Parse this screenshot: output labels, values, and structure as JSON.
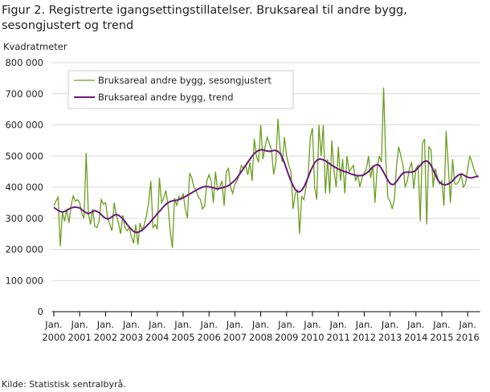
{
  "chart_data": {
    "type": "line",
    "title": "Figur 2. Registrerte igangsettingstillatelser. Bruksareal til andre bygg, sesongjustert og trend",
    "y_label": "Kvadratmeter",
    "source": "Kilde:  Statistisk sentralbyrå.",
    "x": [
      "2000-01",
      "2000-02",
      "2000-03",
      "2000-04",
      "2000-05",
      "2000-06",
      "2000-07",
      "2000-08",
      "2000-09",
      "2000-10",
      "2000-11",
      "2000-12",
      "2001-01",
      "2001-02",
      "2001-03",
      "2001-04",
      "2001-05",
      "2001-06",
      "2001-07",
      "2001-08",
      "2001-09",
      "2001-10",
      "2001-11",
      "2001-12",
      "2002-01",
      "2002-02",
      "2002-03",
      "2002-04",
      "2002-05",
      "2002-06",
      "2002-07",
      "2002-08",
      "2002-09",
      "2002-10",
      "2002-11",
      "2002-12",
      "2003-01",
      "2003-02",
      "2003-03",
      "2003-04",
      "2003-05",
      "2003-06",
      "2003-07",
      "2003-08",
      "2003-09",
      "2003-10",
      "2003-11",
      "2003-12",
      "2004-01",
      "2004-02",
      "2004-03",
      "2004-04",
      "2004-05",
      "2004-06",
      "2004-07",
      "2004-08",
      "2004-09",
      "2004-10",
      "2004-11",
      "2004-12",
      "2005-01",
      "2005-02",
      "2005-03",
      "2005-04",
      "2005-05",
      "2005-06",
      "2005-07",
      "2005-08",
      "2005-09",
      "2005-10",
      "2005-11",
      "2005-12",
      "2006-01",
      "2006-02",
      "2006-03",
      "2006-04",
      "2006-05",
      "2006-06",
      "2006-07",
      "2006-08",
      "2006-09",
      "2006-10",
      "2006-11",
      "2006-12",
      "2007-01",
      "2007-02",
      "2007-03",
      "2007-04",
      "2007-05",
      "2007-06",
      "2007-07",
      "2007-08",
      "2007-09",
      "2007-10",
      "2007-11",
      "2007-12",
      "2008-01",
      "2008-02",
      "2008-03",
      "2008-04",
      "2008-05",
      "2008-06",
      "2008-07",
      "2008-08",
      "2008-09",
      "2008-10",
      "2008-11",
      "2008-12",
      "2009-01",
      "2009-02",
      "2009-03",
      "2009-04",
      "2009-05",
      "2009-06",
      "2009-07",
      "2009-08",
      "2009-09",
      "2009-10",
      "2009-11",
      "2009-12",
      "2010-01",
      "2010-02",
      "2010-03",
      "2010-04",
      "2010-05",
      "2010-06",
      "2010-07",
      "2010-08",
      "2010-09",
      "2010-10",
      "2010-11",
      "2010-12",
      "2011-01",
      "2011-02",
      "2011-03",
      "2011-04",
      "2011-05",
      "2011-06",
      "2011-07",
      "2011-08",
      "2011-09",
      "2011-10",
      "2011-11",
      "2011-12",
      "2012-01",
      "2012-02",
      "2012-03",
      "2012-04",
      "2012-05",
      "2012-06",
      "2012-07",
      "2012-08",
      "2012-09",
      "2012-10",
      "2012-11",
      "2012-12",
      "2013-01",
      "2013-02",
      "2013-03",
      "2013-04",
      "2013-05",
      "2013-06",
      "2013-07",
      "2013-08",
      "2013-09",
      "2013-10",
      "2013-11",
      "2013-12",
      "2014-01",
      "2014-02",
      "2014-03",
      "2014-04",
      "2014-05",
      "2014-06",
      "2014-07",
      "2014-08",
      "2014-09",
      "2014-10",
      "2014-11",
      "2014-12",
      "2015-01",
      "2015-02",
      "2015-03",
      "2015-04",
      "2015-05",
      "2015-06",
      "2015-07",
      "2015-08",
      "2015-09",
      "2015-10",
      "2015-11",
      "2015-12",
      "2016-01",
      "2016-02",
      "2016-03",
      "2016-04",
      "2016-05",
      "2016-06"
    ],
    "series": [
      {
        "name": "Bruksareal andre bygg, sesongjustert",
        "color": "#6a9e1f",
        "width": 1.3,
        "values": [
          340000,
          355000,
          368000,
          210000,
          320000,
          290000,
          330000,
          285000,
          340000,
          372000,
          355000,
          360000,
          350000,
          315000,
          300000,
          510000,
          320000,
          280000,
          330000,
          275000,
          270000,
          290000,
          360000,
          345000,
          350000,
          300000,
          280000,
          260000,
          350000,
          310000,
          285000,
          250000,
          310000,
          270000,
          260000,
          270000,
          240000,
          220000,
          280000,
          215000,
          285000,
          260000,
          280000,
          310000,
          350000,
          420000,
          270000,
          280000,
          265000,
          430000,
          350000,
          365000,
          390000,
          340000,
          260000,
          205000,
          365000,
          340000,
          370000,
          360000,
          380000,
          330000,
          300000,
          445000,
          430000,
          400000,
          390000,
          370000,
          360000,
          330000,
          340000,
          420000,
          440000,
          420000,
          350000,
          450000,
          390000,
          400000,
          420000,
          340000,
          450000,
          460000,
          400000,
          380000,
          410000,
          420000,
          440000,
          470000,
          460000,
          470000,
          440000,
          480000,
          420000,
          555000,
          500000,
          480000,
          600000,
          490000,
          530000,
          560000,
          540000,
          520000,
          440000,
          480000,
          620000,
          520000,
          480000,
          560000,
          500000,
          470000,
          450000,
          330000,
          380000,
          390000,
          250000,
          370000,
          360000,
          400000,
          440000,
          560000,
          590000,
          400000,
          360000,
          600000,
          500000,
          600000,
          380000,
          490000,
          380000,
          550000,
          450000,
          400000,
          530000,
          420000,
          490000,
          380000,
          500000,
          450000,
          460000,
          470000,
          420000,
          440000,
          400000,
          430000,
          445000,
          460000,
          500000,
          430000,
          470000,
          350000,
          460000,
          500000,
          480000,
          720000,
          490000,
          365000,
          355000,
          330000,
          360000,
          470000,
          530000,
          500000,
          470000,
          400000,
          420000,
          460000,
          480000,
          395000,
          460000,
          470000,
          290000,
          540000,
          555000,
          280000,
          530000,
          520000,
          400000,
          460000,
          430000,
          410000,
          420000,
          340000,
          580000,
          470000,
          350000,
          490000,
          410000,
          410000,
          420000,
          440000,
          400000,
          410000,
          460000,
          500000,
          480000,
          455000,
          440000,
          430000
        ]
      },
      {
        "name": "Bruksareal andre bygg, trend",
        "color": "#6c1a7c",
        "width": 2,
        "values": [
          335000,
          330000,
          325000,
          322000,
          320000,
          322000,
          325000,
          330000,
          333000,
          335000,
          336000,
          335000,
          333000,
          328000,
          322000,
          318000,
          315000,
          318000,
          322000,
          325000,
          322000,
          318000,
          312000,
          305000,
          300000,
          298000,
          300000,
          305000,
          310000,
          312000,
          310000,
          305000,
          298000,
          290000,
          280000,
          272000,
          265000,
          258000,
          255000,
          255000,
          258000,
          262000,
          268000,
          275000,
          282000,
          290000,
          298000,
          306000,
          315000,
          322000,
          330000,
          338000,
          345000,
          350000,
          354000,
          356000,
          357000,
          358000,
          360000,
          363000,
          366000,
          370000,
          374000,
          378000,
          382000,
          386000,
          390000,
          394000,
          397000,
          400000,
          402000,
          402000,
          401000,
          400000,
          398000,
          396000,
          395000,
          396000,
          398000,
          400000,
          402000,
          405000,
          410000,
          416000,
          422000,
          430000,
          440000,
          450000,
          460000,
          470000,
          480000,
          490000,
          500000,
          508000,
          514000,
          518000,
          520000,
          520000,
          518000,
          516000,
          515000,
          516000,
          518000,
          518000,
          515000,
          508000,
          495000,
          478000,
          458000,
          438000,
          420000,
          405000,
          392000,
          386000,
          385000,
          390000,
          400000,
          415000,
          432000,
          450000,
          465000,
          478000,
          486000,
          490000,
          490000,
          488000,
          485000,
          480000,
          475000,
          470000,
          466000,
          462000,
          458000,
          455000,
          452000,
          450000,
          448000,
          445000,
          442000,
          440000,
          438000,
          437000,
          437000,
          438000,
          440000,
          445000,
          450000,
          458000,
          465000,
          470000,
          472000,
          470000,
          460000,
          448000,
          435000,
          422000,
          412000,
          408000,
          410000,
          418000,
          428000,
          438000,
          445000,
          448000,
          448000,
          448000,
          448000,
          450000,
          455000,
          462000,
          470000,
          478000,
          483000,
          484000,
          480000,
          470000,
          455000,
          440000,
          425000,
          415000,
          410000,
          408000,
          408000,
          410000,
          415000,
          420000,
          428000,
          435000,
          440000,
          442000,
          440000,
          435000,
          432000,
          430000,
          430000,
          432000,
          434000,
          436000
        ]
      }
    ],
    "ylim": [
      0,
      800000
    ],
    "yticks": [
      0,
      {
        "value": 100000,
        "label": "100 000"
      },
      {
        "value": 200000,
        "label": "200 000"
      },
      {
        "value": 300000,
        "label": "300 000"
      },
      {
        "value": 400000,
        "label": "400 000"
      },
      {
        "value": 500000,
        "label": "500 000"
      },
      {
        "value": 600000,
        "label": "600 000"
      },
      {
        "value": 700000,
        "label": "700 000"
      },
      {
        "value": 800000,
        "label": "800 000"
      }
    ],
    "xticks": [
      {
        "value": "2000-01",
        "label": "Jan. 2000"
      },
      {
        "value": "2001-01",
        "label": "Jan. 2001"
      },
      {
        "value": "2002-01",
        "label": "Jan. 2002"
      },
      {
        "value": "2003-01",
        "label": "Jan. 2003"
      },
      {
        "value": "2004-01",
        "label": "Jan. 2004"
      },
      {
        "value": "2005-01",
        "label": "Jan. 2005"
      },
      {
        "value": "2006-01",
        "label": "Jan. 2006"
      },
      {
        "value": "2007-01",
        "label": "Jan. 2007"
      },
      {
        "value": "2008-01",
        "label": "Jan. 2008"
      },
      {
        "value": "2009-01",
        "label": "Jan. 2009"
      },
      {
        "value": "2010-01",
        "label": "Jan. 2010"
      },
      {
        "value": "2011-01",
        "label": "Jan. 2011"
      },
      {
        "value": "2012-01",
        "label": "Jan. 2012"
      },
      {
        "value": "2013-01",
        "label": "Jan. 2013"
      },
      {
        "value": "2014-01",
        "label": "Jan. 2014"
      },
      {
        "value": "2015-01",
        "label": "Jan. 2015"
      },
      {
        "value": "2016-01",
        "label": "Jan. 2016"
      }
    ],
    "grid": true,
    "legend": "top-left"
  }
}
